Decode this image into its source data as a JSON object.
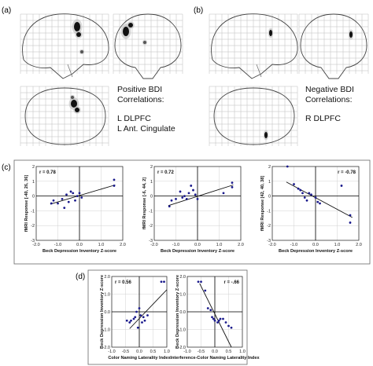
{
  "panels": {
    "a": "(a)",
    "b": "(b)",
    "c": "(c)",
    "d": "(d)"
  },
  "captions": {
    "positive": {
      "line1": "Positive BDI",
      "line2": "Correlations:",
      "line3": "L DLPFC",
      "line4": "L Ant. Cingulate"
    },
    "negative": {
      "line1": "Negative BDI",
      "line2": "Correlations:",
      "line3": "R DLPFC"
    }
  },
  "chart_data": [
    {
      "type": "scatter",
      "panel": "c",
      "r_label": "r = 0.78",
      "r_position": "top-left",
      "xlabel": "Beck Depression Inventory Z-score",
      "ylabel": "fMRI Response [-40, 26, 36]",
      "xlim": [
        -2.0,
        2.0
      ],
      "ylim": [
        -3,
        2
      ],
      "xticks": [
        "-2.0",
        "-1.0",
        "0.0",
        "1.0",
        "2.0"
      ],
      "yticks": [
        "2",
        "1",
        "0",
        "-1",
        "-2",
        "-3"
      ],
      "points": [
        [
          -1.3,
          -0.5
        ],
        [
          -1.2,
          -0.3
        ],
        [
          -1.0,
          -0.5
        ],
        [
          -0.8,
          -0.2
        ],
        [
          -0.7,
          -0.8
        ],
        [
          -0.6,
          0.1
        ],
        [
          -0.5,
          -0.4
        ],
        [
          -0.4,
          0.3
        ],
        [
          -0.3,
          0.2
        ],
        [
          -0.2,
          -0.3
        ],
        [
          -0.1,
          0.0
        ],
        [
          0.0,
          0.2
        ],
        [
          0.1,
          -0.1
        ],
        [
          1.6,
          0.7
        ],
        [
          1.6,
          1.1
        ]
      ],
      "fit": [
        [
          -1.35,
          -0.55
        ],
        [
          1.65,
          0.75
        ]
      ]
    },
    {
      "type": "scatter",
      "panel": "c",
      "r_label": "r = 0.72",
      "r_position": "top-left",
      "xlabel": "Beck Depression Inventory Z-score",
      "ylabel": "fMRI Response [-6, 44, 2]",
      "xlim": [
        -2.0,
        2.0
      ],
      "ylim": [
        -3,
        2
      ],
      "xticks": [
        "-2.0",
        "-1.0",
        "0.0",
        "1.0",
        "2.0"
      ],
      "yticks": [
        "2",
        "1",
        "0",
        "-1",
        "-2",
        "-3"
      ],
      "points": [
        [
          -1.3,
          -0.7
        ],
        [
          -1.2,
          -0.3
        ],
        [
          -1.0,
          -0.2
        ],
        [
          -0.8,
          0.3
        ],
        [
          -0.7,
          -0.1
        ],
        [
          -0.6,
          0.0
        ],
        [
          -0.5,
          -0.2
        ],
        [
          -0.4,
          0.2
        ],
        [
          -0.3,
          0.7
        ],
        [
          -0.2,
          0.4
        ],
        [
          -0.1,
          0.1
        ],
        [
          0.0,
          -0.2
        ],
        [
          1.2,
          0.2
        ],
        [
          1.6,
          0.6
        ],
        [
          1.6,
          0.9
        ]
      ],
      "fit": [
        [
          -1.35,
          -0.65
        ],
        [
          1.65,
          0.75
        ]
      ]
    },
    {
      "type": "scatter",
      "panel": "c",
      "r_label": "r = -0.78",
      "r_position": "top-right",
      "xlabel": "Beck Depression Inventory Z-score",
      "ylabel": "fMRI Response [42, 40, 38]",
      "xlim": [
        -2.0,
        2.0
      ],
      "ylim": [
        -3,
        2
      ],
      "xticks": [
        "-2.0",
        "-1.0",
        "0.0",
        "1.0",
        "2.0"
      ],
      "yticks": [
        "2",
        "1",
        "0",
        "-1",
        "-2",
        "-3"
      ],
      "points": [
        [
          -1.3,
          2.0
        ],
        [
          -1.0,
          0.8
        ],
        [
          -0.8,
          0.5
        ],
        [
          -0.7,
          0.4
        ],
        [
          -0.6,
          0.2
        ],
        [
          -0.5,
          -0.1
        ],
        [
          -0.4,
          -0.3
        ],
        [
          -0.3,
          0.2
        ],
        [
          -0.2,
          0.1
        ],
        [
          0.0,
          -0.1
        ],
        [
          0.1,
          -0.4
        ],
        [
          0.2,
          -0.5
        ],
        [
          1.2,
          0.7
        ],
        [
          1.6,
          -1.3
        ],
        [
          1.6,
          -1.8
        ]
      ],
      "fit": [
        [
          -1.35,
          0.95
        ],
        [
          1.7,
          -1.45
        ]
      ]
    },
    {
      "type": "scatter",
      "panel": "d",
      "r_label": "r = 0.56",
      "r_position": "top-left",
      "xlabel": "Color Naming Laterality Index",
      "ylabel": "Beck Depression Inventory Z-score",
      "xlim": [
        -1.0,
        1.0
      ],
      "ylim": [
        -2.0,
        2.0
      ],
      "xticks": [
        "-1.0",
        "-0.5",
        "0.0",
        "0.5",
        "1.0"
      ],
      "yticks": [
        "2.0",
        "1.0",
        "0.0",
        "-1.0",
        "-2.0"
      ],
      "points": [
        [
          -0.45,
          -0.5
        ],
        [
          -0.35,
          -0.6
        ],
        [
          -0.3,
          -0.5
        ],
        [
          -0.2,
          -0.4
        ],
        [
          -0.15,
          -0.3
        ],
        [
          -0.1,
          0.0
        ],
        [
          -0.05,
          -0.9
        ],
        [
          0.0,
          0.2
        ],
        [
          0.05,
          -0.2
        ],
        [
          0.1,
          -0.6
        ],
        [
          0.15,
          -0.3
        ],
        [
          0.2,
          -0.5
        ],
        [
          0.3,
          -0.2
        ],
        [
          0.8,
          1.7
        ],
        [
          0.9,
          1.7
        ]
      ],
      "fit": [
        [
          -0.35,
          -0.95
        ],
        [
          1.0,
          1.25
        ]
      ]
    },
    {
      "type": "scatter",
      "panel": "d",
      "r_label": "r = -.66",
      "r_position": "top-right",
      "xlabel": "Interference-Color Naming Laterality Index",
      "ylabel": "Beck Depression Inventory Z-score",
      "xlim": [
        -1.0,
        1.0
      ],
      "ylim": [
        -2.0,
        2.0
      ],
      "xticks": [
        "-1.0",
        "-0.5",
        "0.0",
        "0.5",
        "1.0"
      ],
      "yticks": [
        "2.0",
        "1.0",
        "0.0",
        "-1.0",
        "-2.0"
      ],
      "points": [
        [
          -0.6,
          1.7
        ],
        [
          -0.5,
          1.7
        ],
        [
          -0.35,
          1.2
        ],
        [
          -0.25,
          0.2
        ],
        [
          -0.15,
          0.1
        ],
        [
          -0.1,
          -0.3
        ],
        [
          -0.05,
          -0.4
        ],
        [
          0.0,
          -0.5
        ],
        [
          0.1,
          -0.6
        ],
        [
          0.15,
          -0.5
        ],
        [
          0.2,
          -0.4
        ],
        [
          0.3,
          -0.4
        ],
        [
          0.4,
          -0.6
        ],
        [
          0.5,
          -0.8
        ],
        [
          0.6,
          -0.9
        ]
      ],
      "fit": [
        [
          -0.55,
          1.6
        ],
        [
          0.6,
          -2.0
        ]
      ]
    }
  ]
}
